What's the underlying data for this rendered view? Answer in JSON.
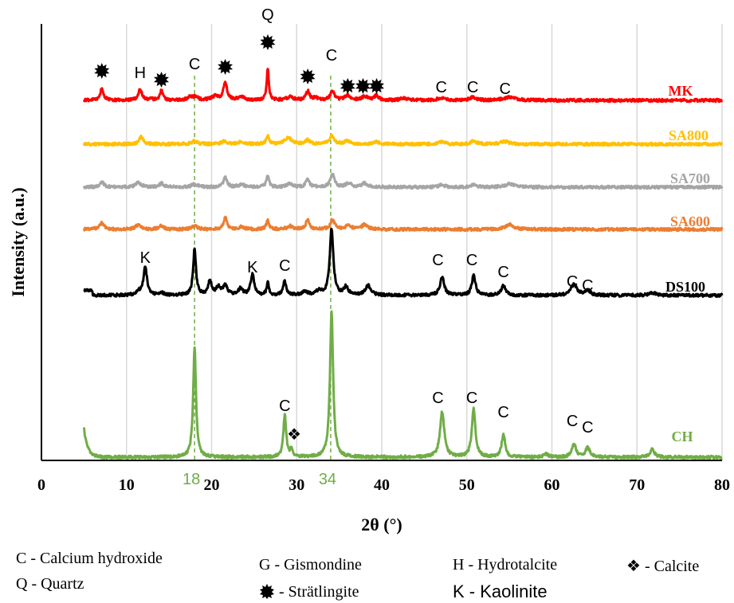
{
  "chart_data": {
    "type": "line",
    "xlabel": "2θ (°)",
    "ylabel": "Intensity (a.u.)",
    "xlim": [
      0,
      80
    ],
    "xticks": [
      0,
      10,
      20,
      30,
      40,
      50,
      60,
      70,
      80
    ],
    "grid": "vertical",
    "reference_lines": [
      {
        "x": 18,
        "label": "18",
        "color": "#70AD47"
      },
      {
        "x": 34,
        "label": "34",
        "color": "#70AD47"
      }
    ],
    "series": [
      {
        "name": "MK",
        "color": "#FF0000",
        "offset": 0.78,
        "baseline": 0.05,
        "peaks": [
          [
            7.1,
            0.36,
            0.25
          ],
          [
            11.6,
            0.35,
            0.25
          ],
          [
            12.8,
            0.03,
            0.5
          ],
          [
            14.1,
            0.3,
            0.2
          ],
          [
            17.5,
            0.1,
            0.4
          ],
          [
            18.1,
            0.08,
            0.4
          ],
          [
            20.4,
            0.12,
            0.5
          ],
          [
            21.6,
            0.55,
            0.25
          ],
          [
            23.5,
            0.1,
            0.5
          ],
          [
            26.6,
            1.0,
            0.15
          ],
          [
            29.2,
            0.1,
            0.5
          ],
          [
            31.3,
            0.28,
            0.25
          ],
          [
            32.2,
            0.08,
            0.3
          ],
          [
            34.2,
            0.28,
            0.3
          ],
          [
            36.0,
            0.15,
            0.4
          ],
          [
            38.0,
            0.12,
            0.4
          ],
          [
            39.4,
            0.15,
            0.3
          ],
          [
            42.6,
            0.06,
            0.5
          ],
          [
            47.0,
            0.08,
            0.5
          ],
          [
            50.7,
            0.1,
            0.4
          ],
          [
            55.0,
            0.1,
            0.8
          ]
        ]
      },
      {
        "name": "SA800",
        "color": "#FFC000",
        "offset": 0.61,
        "baseline": 0.05,
        "peaks": [
          [
            11.7,
            0.22,
            0.3
          ],
          [
            18.0,
            0.1,
            0.4
          ],
          [
            21.5,
            0.08,
            0.4
          ],
          [
            23.5,
            0.07,
            0.5
          ],
          [
            26.6,
            0.25,
            0.2
          ],
          [
            29.0,
            0.2,
            0.5
          ],
          [
            31.3,
            0.12,
            0.3
          ],
          [
            34.1,
            0.25,
            0.35
          ],
          [
            36.0,
            0.1,
            0.4
          ],
          [
            39.4,
            0.07,
            0.4
          ],
          [
            47.0,
            0.07,
            0.5
          ],
          [
            50.8,
            0.1,
            0.4
          ],
          [
            54.5,
            0.08,
            0.6
          ]
        ]
      },
      {
        "name": "SA700",
        "color": "#A5A5A5",
        "offset": 0.44,
        "baseline": 0.05,
        "peaks": [
          [
            7.1,
            0.16,
            0.3
          ],
          [
            11.4,
            0.14,
            0.4
          ],
          [
            14.1,
            0.12,
            0.3
          ],
          [
            18.0,
            0.09,
            0.4
          ],
          [
            21.6,
            0.3,
            0.25
          ],
          [
            23.5,
            0.08,
            0.4
          ],
          [
            26.6,
            0.35,
            0.2
          ],
          [
            29.2,
            0.1,
            0.4
          ],
          [
            31.3,
            0.25,
            0.25
          ],
          [
            34.2,
            0.4,
            0.3
          ],
          [
            36.1,
            0.12,
            0.4
          ],
          [
            38.0,
            0.12,
            0.4
          ],
          [
            47.0,
            0.06,
            0.5
          ],
          [
            50.8,
            0.08,
            0.4
          ],
          [
            55.0,
            0.1,
            0.6
          ]
        ]
      },
      {
        "name": "SA600",
        "color": "#ED7D31",
        "offset": 0.26,
        "baseline": 0.05,
        "peaks": [
          [
            7.1,
            0.2,
            0.3
          ],
          [
            11.4,
            0.14,
            0.4
          ],
          [
            14.1,
            0.12,
            0.3
          ],
          [
            18.0,
            0.1,
            0.4
          ],
          [
            21.6,
            0.36,
            0.25
          ],
          [
            23.5,
            0.08,
            0.4
          ],
          [
            26.6,
            0.28,
            0.2
          ],
          [
            29.2,
            0.1,
            0.4
          ],
          [
            31.3,
            0.3,
            0.25
          ],
          [
            34.2,
            0.3,
            0.3
          ],
          [
            36.1,
            0.12,
            0.4
          ],
          [
            38.0,
            0.15,
            0.4
          ],
          [
            55.0,
            0.15,
            0.6
          ]
        ]
      },
      {
        "name": "DS100",
        "color": "#000000",
        "offset": 0.0,
        "baseline": 0.03,
        "peaks": [
          [
            11.4,
            0.1,
            0.4
          ],
          [
            12.2,
            0.9,
            0.25
          ],
          [
            14.1,
            0.08,
            0.3
          ],
          [
            18.0,
            1.45,
            0.2
          ],
          [
            19.8,
            0.45,
            0.25
          ],
          [
            20.8,
            0.25,
            0.3
          ],
          [
            21.6,
            0.3,
            0.3
          ],
          [
            23.4,
            0.2,
            0.3
          ],
          [
            24.8,
            0.65,
            0.25
          ],
          [
            26.6,
            0.4,
            0.15
          ],
          [
            28.6,
            0.45,
            0.2
          ],
          [
            31.0,
            0.1,
            0.4
          ],
          [
            32.6,
            0.12,
            0.4
          ],
          [
            34.1,
            2.1,
            0.25
          ],
          [
            35.8,
            0.25,
            0.3
          ],
          [
            38.4,
            0.3,
            0.4
          ],
          [
            47.1,
            0.55,
            0.3
          ],
          [
            50.8,
            0.65,
            0.25
          ],
          [
            54.3,
            0.3,
            0.3
          ],
          [
            62.6,
            0.35,
            0.4
          ],
          [
            64.2,
            0.15,
            0.4
          ],
          [
            71.8,
            0.08,
            0.5
          ]
        ]
      },
      {
        "name": "CH",
        "color": "#70AD47",
        "offset": -0.6,
        "baseline": 0.0,
        "peaks": [
          [
            18.0,
            3.45,
            0.2
          ],
          [
            28.6,
            1.32,
            0.2
          ],
          [
            29.4,
            0.25,
            0.15
          ],
          [
            34.1,
            4.55,
            0.22
          ],
          [
            47.1,
            1.42,
            0.3
          ],
          [
            50.8,
            1.53,
            0.25
          ],
          [
            54.3,
            0.7,
            0.25
          ],
          [
            59.3,
            0.1,
            0.3
          ],
          [
            62.6,
            0.4,
            0.3
          ],
          [
            64.2,
            0.3,
            0.3
          ],
          [
            71.8,
            0.25,
            0.3
          ]
        ]
      }
    ],
    "annotations": [
      {
        "text": "C",
        "x": 18,
        "series": "MK"
      },
      {
        "text": "H",
        "x": 11.6,
        "series": "MK"
      },
      {
        "text": "Q",
        "x": 26.6,
        "series": "MK"
      },
      {
        "text": "C",
        "x": 34.1,
        "series": "MK"
      },
      {
        "text": "C",
        "x": 47,
        "series": "MK"
      },
      {
        "text": "C",
        "x": 50.7,
        "series": "MK"
      },
      {
        "text": "C",
        "x": 54.5,
        "series": "MK"
      },
      {
        "text": "K",
        "x": 12.2,
        "series": "DS100"
      },
      {
        "text": "K",
        "x": 24.8,
        "series": "DS100"
      },
      {
        "text": "C",
        "x": 28.6,
        "series": "DS100"
      },
      {
        "text": "C",
        "x": 46.6,
        "series": "DS100"
      },
      {
        "text": "C",
        "x": 50.6,
        "series": "DS100"
      },
      {
        "text": "C",
        "x": 54.3,
        "series": "DS100"
      },
      {
        "text": "C",
        "x": 62.4,
        "series": "DS100"
      },
      {
        "text": "C",
        "x": 64.2,
        "series": "DS100"
      },
      {
        "text": "C",
        "x": 28.6,
        "series": "CH"
      },
      {
        "text": "C",
        "x": 46.6,
        "series": "CH"
      },
      {
        "text": "C",
        "x": 50.6,
        "series": "CH"
      },
      {
        "text": "C",
        "x": 54.3,
        "series": "CH"
      },
      {
        "text": "C",
        "x": 62.4,
        "series": "CH"
      },
      {
        "text": "C",
        "x": 64.2,
        "series": "CH"
      }
    ],
    "markers": [
      {
        "symbol": "strätlingite",
        "x": 7.1,
        "series": "MK"
      },
      {
        "symbol": "strätlingite",
        "x": 14.1,
        "series": "MK"
      },
      {
        "symbol": "strätlingite",
        "x": 21.6,
        "series": "MK"
      },
      {
        "symbol": "strätlingite",
        "x": 26.6,
        "series": "MK"
      },
      {
        "symbol": "strätlingite",
        "x": 31.3,
        "series": "MK"
      },
      {
        "symbol": "strätlingite",
        "x": 36.0,
        "series": "MK"
      },
      {
        "symbol": "strätlingite",
        "x": 37.8,
        "series": "MK"
      },
      {
        "symbol": "strätlingite",
        "x": 39.4,
        "series": "MK"
      },
      {
        "symbol": "calcite",
        "x": 29.7,
        "series": "CH"
      }
    ]
  },
  "legend": {
    "calcium_hydroxide": "C - Calcium hydroxide",
    "quartz": "Q - Quartz",
    "gismondine": "G - Gismondine",
    "stratlingite": " - Strätlingite",
    "hydrotalcite": "H - Hydrotalcite",
    "kaolinite": "K - Kaolinite",
    "calcite": " - Calcite"
  }
}
